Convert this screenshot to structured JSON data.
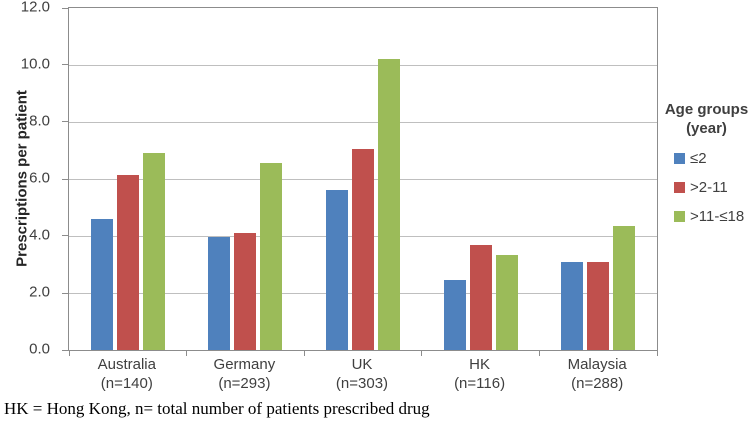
{
  "chart_data": {
    "type": "bar",
    "title": "",
    "xlabel": "",
    "ylabel": "Prescriptions per patient",
    "ylim": [
      0,
      12
    ],
    "ytick_step": 2,
    "ytick_labels": [
      "0.0",
      "2.0",
      "4.0",
      "6.0",
      "8.0",
      "10.0",
      "12.0"
    ],
    "grid": true,
    "categories": [
      "Australia",
      "Germany",
      "UK",
      "HK",
      "Malaysia"
    ],
    "category_sublabels": [
      "(n=140)",
      "(n=293)",
      "(n=303)",
      "(n=116)",
      "(n=288)"
    ],
    "series": [
      {
        "name": "≤2",
        "color": "#4f81bd",
        "values": [
          4.6,
          3.95,
          5.6,
          2.45,
          3.1
        ]
      },
      {
        "name": ">2-11",
        "color": "#c0504d",
        "values": [
          6.15,
          4.1,
          7.05,
          3.7,
          3.1
        ]
      },
      {
        "name": ">11-≤18",
        "color": "#9bbb59",
        "values": [
          6.9,
          6.55,
          10.2,
          3.35,
          4.35
        ]
      }
    ],
    "legend": {
      "position": "right",
      "title_line1": "Age groups",
      "title_line2": "(year)"
    }
  },
  "footnote": "HK = Hong Kong, n= total number of patients prescribed drug",
  "colors": {
    "plot_border": "#8c8c8c",
    "gridline": "#bfbfbf",
    "axis_text": "#3f3f3f",
    "background": "#ffffff"
  }
}
